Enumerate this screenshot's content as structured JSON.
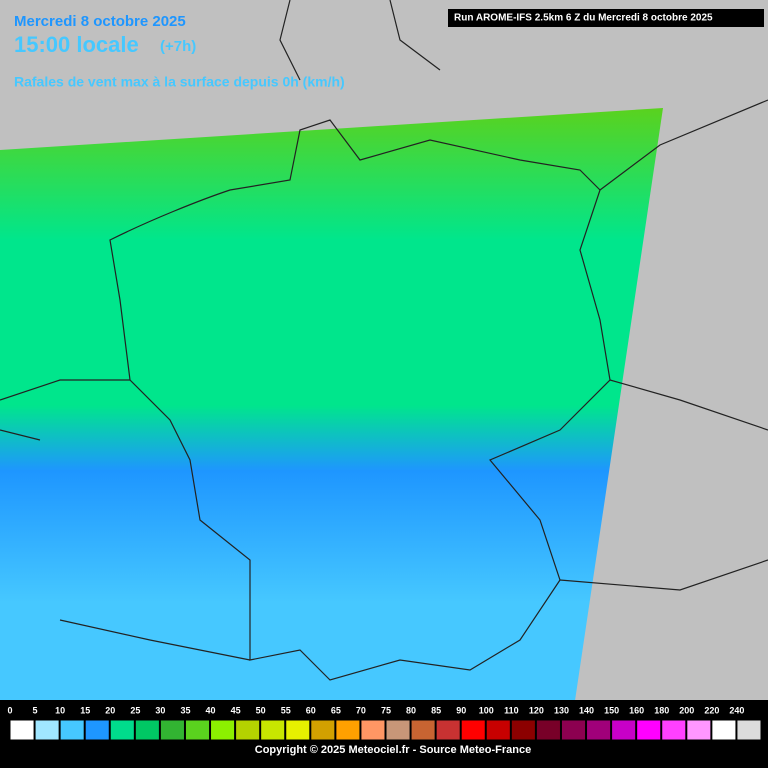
{
  "header": {
    "date": "Mercredi 8 octobre 2025",
    "time": "15:00 locale",
    "offset": "(+7h)",
    "subtitle": "Rafales de vent max à la surface depuis 0h (km/h)",
    "run": "Run AROME-IFS 2.5km 6 Z du Mercredi 8 octobre 2025"
  },
  "legend": {
    "ticks": [
      0,
      5,
      10,
      15,
      20,
      25,
      30,
      35,
      40,
      45,
      50,
      55,
      60,
      65,
      70,
      75,
      80,
      85,
      90,
      100,
      110,
      120,
      130,
      140,
      150,
      160,
      180,
      200,
      220,
      240
    ],
    "colors": [
      "#ffffff",
      "#a0e6ff",
      "#46c8ff",
      "#1e96ff",
      "#00dc8c",
      "#00c864",
      "#32b432",
      "#5ad21e",
      "#8cf000",
      "#b4d200",
      "#c8e600",
      "#e6f000",
      "#d2a000",
      "#ffa000",
      "#ff9664",
      "#c89678",
      "#c86432",
      "#c83232",
      "#ff0000",
      "#c80000",
      "#8c0000",
      "#780028",
      "#8c0050",
      "#a0007a",
      "#c800c8",
      "#ff00ff",
      "#ff40ff",
      "#ff96ff",
      "#ffffff",
      "#dcdcdc"
    ]
  },
  "footer": {
    "copyright": "Copyright © 2025 Meteociel.fr - Source Meteo-France"
  }
}
